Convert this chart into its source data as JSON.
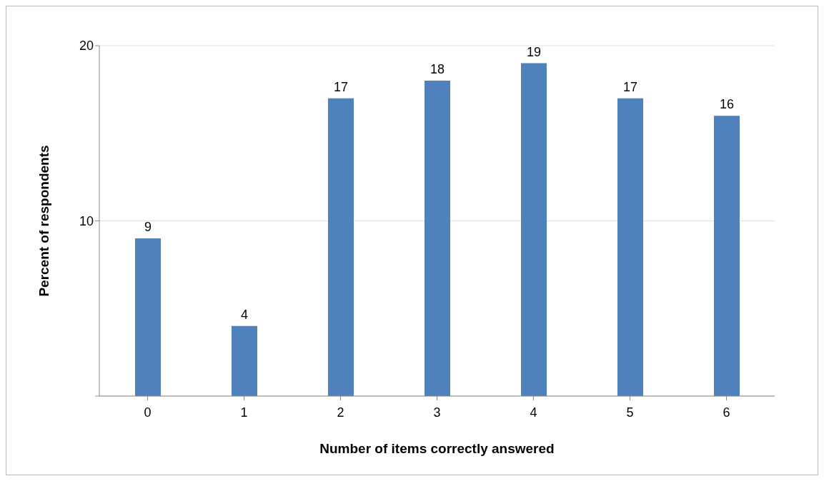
{
  "chart_data": {
    "type": "bar",
    "xlabel": "Number of items correctly answered",
    "ylabel": "Percent of respondents",
    "categories": [
      "0",
      "1",
      "2",
      "3",
      "4",
      "5",
      "6"
    ],
    "values": [
      9,
      4,
      17,
      18,
      19,
      17,
      16
    ],
    "color": "#4f81bd",
    "ylim": [
      0,
      20
    ],
    "yticks": [
      {
        "value": 0,
        "label": null
      },
      10,
      20
    ],
    "grid": "y",
    "data_labels": true
  }
}
